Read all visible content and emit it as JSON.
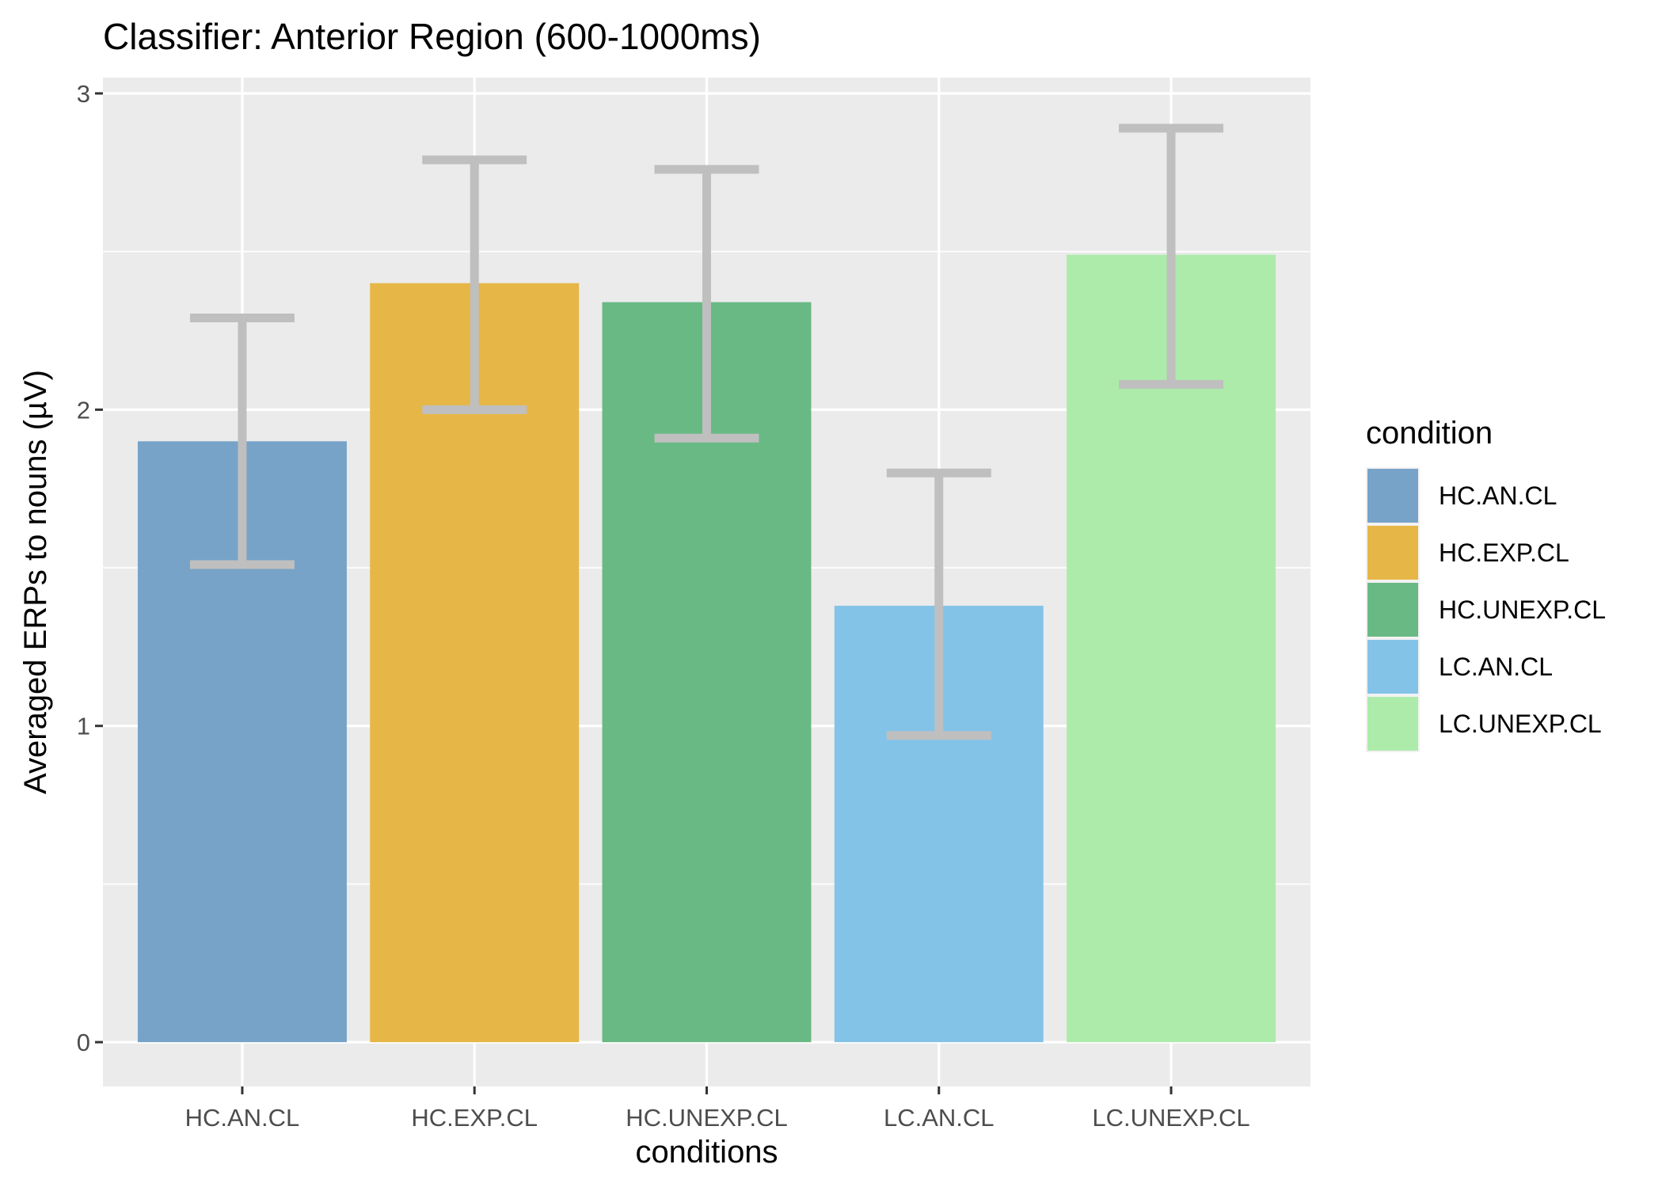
{
  "chart_data": {
    "type": "bar",
    "title": "Classifier: Anterior Region (600-1000ms)",
    "xlabel": "conditions",
    "ylabel": "Averaged ERPs to nouns (µV)",
    "categories": [
      "HC.AN.CL",
      "HC.EXP.CL",
      "HC.UNEXP.CL",
      "LC.AN.CL",
      "LC.UNEXP.CL"
    ],
    "values": [
      1.9,
      2.4,
      2.34,
      1.38,
      2.49
    ],
    "error_low": [
      1.51,
      2.0,
      1.91,
      0.97,
      2.08
    ],
    "error_high": [
      2.29,
      2.79,
      2.76,
      1.8,
      2.89
    ],
    "colors": [
      "#77a3c8",
      "#e6b647",
      "#69b985",
      "#84c3e8",
      "#adebaa"
    ],
    "error_bar_color": "#bfbfbf",
    "ylim": [
      -0.14,
      3.05
    ],
    "yticks": [
      0,
      1,
      2,
      3
    ],
    "grid": true,
    "panel_background": "#ebebeb",
    "legend": {
      "title": "condition",
      "position": "right",
      "entries": [
        "HC.AN.CL",
        "HC.EXP.CL",
        "HC.UNEXP.CL",
        "LC.AN.CL",
        "LC.UNEXP.CL"
      ]
    }
  }
}
